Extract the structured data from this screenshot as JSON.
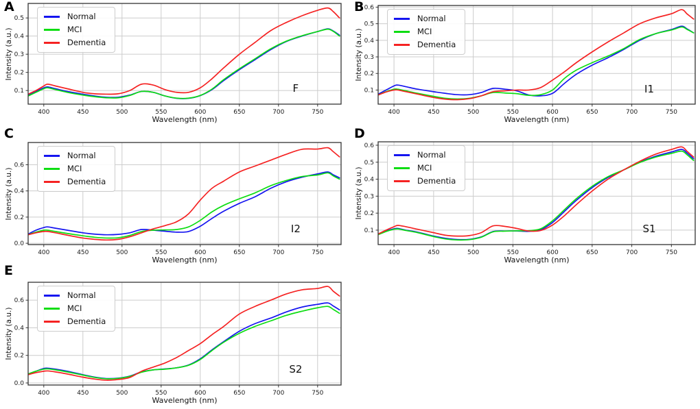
{
  "legend_labels": {
    "normal": "Normal",
    "mci": "MCI",
    "dementia": "Dementia"
  },
  "colors": {
    "normal": "#1414f0",
    "mci": "#0ddd12",
    "dementia": "#f52222",
    "grid": "#cccccc",
    "spine": "#333333"
  },
  "chart_data": [
    {
      "type": "line",
      "panel_letter": "A",
      "tag": "F",
      "xlabel": "Wavelength (nm)",
      "ylabel": "Intensity (a.u.)",
      "xlim": [
        380,
        780
      ],
      "ylim": [
        0.025,
        0.58
      ],
      "xticks": [
        400,
        450,
        500,
        550,
        600,
        650,
        700,
        750
      ],
      "yticks": [
        0.1,
        0.2,
        0.3,
        0.4,
        0.5
      ],
      "grid": true,
      "legend_position": "upper left",
      "x": [
        380,
        390,
        400,
        405,
        415,
        430,
        450,
        465,
        480,
        495,
        510,
        525,
        540,
        555,
        570,
        585,
        600,
        615,
        630,
        650,
        670,
        690,
        710,
        730,
        750,
        763,
        770,
        778
      ],
      "series": [
        {
          "name": "Normal",
          "color": "#1414f0",
          "values": [
            0.075,
            0.095,
            0.115,
            0.12,
            0.11,
            0.095,
            0.08,
            0.07,
            0.063,
            0.063,
            0.075,
            0.095,
            0.09,
            0.07,
            0.057,
            0.057,
            0.072,
            0.105,
            0.155,
            0.215,
            0.27,
            0.325,
            0.37,
            0.4,
            0.425,
            0.44,
            0.428,
            0.405
          ]
        },
        {
          "name": "MCI",
          "color": "#0ddd12",
          "values": [
            0.07,
            0.09,
            0.11,
            0.115,
            0.105,
            0.09,
            0.075,
            0.066,
            0.06,
            0.06,
            0.073,
            0.095,
            0.09,
            0.07,
            0.058,
            0.058,
            0.073,
            0.108,
            0.16,
            0.22,
            0.275,
            0.33,
            0.372,
            0.402,
            0.425,
            0.438,
            0.426,
            0.4
          ]
        },
        {
          "name": "Dementia",
          "color": "#f52222",
          "values": [
            0.08,
            0.1,
            0.125,
            0.135,
            0.125,
            0.11,
            0.09,
            0.082,
            0.08,
            0.082,
            0.1,
            0.135,
            0.13,
            0.105,
            0.09,
            0.09,
            0.115,
            0.165,
            0.225,
            0.3,
            0.365,
            0.43,
            0.475,
            0.512,
            0.542,
            0.555,
            0.535,
            0.5
          ]
        }
      ]
    },
    {
      "type": "line",
      "panel_letter": "B",
      "tag": "I1",
      "xlabel": "Wavelength (nm)",
      "ylabel": "Intensity (a.u.)",
      "xlim": [
        380,
        780
      ],
      "ylim": [
        0.015,
        0.61
      ],
      "xticks": [
        400,
        450,
        500,
        550,
        600,
        650,
        700,
        750
      ],
      "yticks": [
        0.1,
        0.2,
        0.3,
        0.4,
        0.5,
        0.6
      ],
      "grid": true,
      "legend_position": "upper left",
      "x": [
        380,
        390,
        400,
        405,
        415,
        430,
        450,
        465,
        480,
        495,
        510,
        525,
        540,
        555,
        570,
        585,
        600,
        615,
        630,
        650,
        670,
        690,
        710,
        730,
        750,
        763,
        770,
        778
      ],
      "series": [
        {
          "name": "Normal",
          "color": "#1414f0",
          "values": [
            0.075,
            0.1,
            0.125,
            0.13,
            0.12,
            0.105,
            0.09,
            0.08,
            0.072,
            0.072,
            0.085,
            0.11,
            0.105,
            0.095,
            0.07,
            0.065,
            0.08,
            0.14,
            0.195,
            0.25,
            0.295,
            0.345,
            0.4,
            0.44,
            0.465,
            0.485,
            0.468,
            0.445
          ]
        },
        {
          "name": "MCI",
          "color": "#0ddd12",
          "values": [
            0.07,
            0.09,
            0.105,
            0.105,
            0.095,
            0.08,
            0.062,
            0.05,
            0.046,
            0.05,
            0.065,
            0.085,
            0.082,
            0.078,
            0.068,
            0.072,
            0.1,
            0.17,
            0.22,
            0.265,
            0.305,
            0.35,
            0.405,
            0.44,
            0.462,
            0.48,
            0.465,
            0.445
          ]
        },
        {
          "name": "Dementia",
          "color": "#f52222",
          "values": [
            0.07,
            0.088,
            0.1,
            0.1,
            0.09,
            0.075,
            0.055,
            0.045,
            0.042,
            0.048,
            0.065,
            0.09,
            0.095,
            0.1,
            0.1,
            0.115,
            0.16,
            0.21,
            0.265,
            0.33,
            0.39,
            0.445,
            0.5,
            0.535,
            0.56,
            0.585,
            0.558,
            0.528
          ]
        }
      ]
    },
    {
      "type": "line",
      "panel_letter": "C",
      "tag": "I2",
      "xlabel": "Wavelength (nm)",
      "ylabel": "Intensity (a.u.)",
      "xlim": [
        380,
        780
      ],
      "ylim": [
        -0.01,
        0.77
      ],
      "xticks": [
        400,
        450,
        500,
        550,
        600,
        650,
        700,
        750
      ],
      "yticks": [
        0.0,
        0.2,
        0.4,
        0.6
      ],
      "grid": true,
      "legend_position": "upper left",
      "x": [
        380,
        390,
        400,
        405,
        415,
        430,
        450,
        465,
        480,
        495,
        510,
        525,
        540,
        555,
        570,
        585,
        600,
        615,
        630,
        650,
        670,
        690,
        710,
        730,
        750,
        763,
        770,
        778
      ],
      "series": [
        {
          "name": "Normal",
          "color": "#1414f0",
          "values": [
            0.07,
            0.1,
            0.12,
            0.125,
            0.115,
            0.1,
            0.08,
            0.07,
            0.065,
            0.068,
            0.08,
            0.105,
            0.1,
            0.092,
            0.085,
            0.09,
            0.13,
            0.19,
            0.245,
            0.305,
            0.355,
            0.42,
            0.47,
            0.505,
            0.53,
            0.545,
            0.523,
            0.5
          ]
        },
        {
          "name": "MCI",
          "color": "#0ddd12",
          "values": [
            0.065,
            0.085,
            0.1,
            0.1,
            0.09,
            0.075,
            0.057,
            0.046,
            0.04,
            0.042,
            0.06,
            0.09,
            0.1,
            0.102,
            0.105,
            0.125,
            0.175,
            0.24,
            0.29,
            0.34,
            0.385,
            0.44,
            0.48,
            0.51,
            0.522,
            0.538,
            0.515,
            0.49
          ]
        },
        {
          "name": "Dementia",
          "color": "#f52222",
          "values": [
            0.065,
            0.08,
            0.09,
            0.09,
            0.08,
            0.062,
            0.04,
            0.03,
            0.025,
            0.03,
            0.05,
            0.08,
            0.11,
            0.135,
            0.165,
            0.225,
            0.33,
            0.42,
            0.475,
            0.545,
            0.59,
            0.635,
            0.68,
            0.718,
            0.72,
            0.73,
            0.7,
            0.66
          ]
        }
      ]
    },
    {
      "type": "line",
      "panel_letter": "D",
      "tag": "S1",
      "xlabel": "Wavelength (nm)",
      "ylabel": "Intensity (a.u.)",
      "xlim": [
        380,
        780
      ],
      "ylim": [
        0.015,
        0.62
      ],
      "xticks": [
        400,
        450,
        500,
        550,
        600,
        650,
        700,
        750
      ],
      "yticks": [
        0.1,
        0.2,
        0.3,
        0.4,
        0.5,
        0.6
      ],
      "grid": true,
      "legend_position": "upper left",
      "x": [
        380,
        390,
        400,
        405,
        415,
        430,
        450,
        465,
        480,
        495,
        510,
        525,
        540,
        555,
        570,
        585,
        600,
        615,
        630,
        650,
        670,
        690,
        710,
        730,
        750,
        763,
        770,
        778
      ],
      "series": [
        {
          "name": "Normal",
          "color": "#1414f0",
          "values": [
            0.075,
            0.095,
            0.108,
            0.11,
            0.1,
            0.088,
            0.065,
            0.052,
            0.045,
            0.046,
            0.06,
            0.092,
            0.095,
            0.095,
            0.093,
            0.103,
            0.145,
            0.21,
            0.275,
            0.35,
            0.41,
            0.455,
            0.5,
            0.535,
            0.56,
            0.575,
            0.553,
            0.52
          ]
        },
        {
          "name": "MCI",
          "color": "#0ddd12",
          "values": [
            0.073,
            0.092,
            0.105,
            0.107,
            0.098,
            0.085,
            0.062,
            0.048,
            0.042,
            0.044,
            0.058,
            0.09,
            0.094,
            0.096,
            0.097,
            0.108,
            0.155,
            0.22,
            0.285,
            0.358,
            0.415,
            0.455,
            0.498,
            0.53,
            0.552,
            0.565,
            0.543,
            0.51
          ]
        },
        {
          "name": "Dementia",
          "color": "#f52222",
          "values": [
            0.077,
            0.1,
            0.12,
            0.128,
            0.12,
            0.105,
            0.085,
            0.07,
            0.065,
            0.068,
            0.085,
            0.125,
            0.122,
            0.11,
            0.095,
            0.098,
            0.13,
            0.185,
            0.25,
            0.33,
            0.4,
            0.455,
            0.505,
            0.547,
            0.575,
            0.59,
            0.563,
            0.53
          ]
        }
      ]
    },
    {
      "type": "line",
      "panel_letter": "E",
      "tag": "S2",
      "xlabel": "Wavelength (nm)",
      "ylabel": "Intensity (a.u.)",
      "xlim": [
        380,
        780
      ],
      "ylim": [
        -0.015,
        0.73
      ],
      "xticks": [
        400,
        450,
        500,
        550,
        600,
        650,
        700,
        750
      ],
      "yticks": [
        0.0,
        0.2,
        0.4,
        0.6
      ],
      "grid": true,
      "legend_position": "upper left",
      "x": [
        380,
        390,
        400,
        405,
        415,
        430,
        450,
        465,
        480,
        495,
        510,
        525,
        540,
        555,
        570,
        585,
        600,
        615,
        630,
        650,
        670,
        690,
        710,
        730,
        750,
        763,
        770,
        778
      ],
      "series": [
        {
          "name": "Normal",
          "color": "#1414f0",
          "values": [
            0.065,
            0.085,
            0.105,
            0.107,
            0.1,
            0.085,
            0.06,
            0.042,
            0.032,
            0.035,
            0.05,
            0.08,
            0.095,
            0.102,
            0.11,
            0.13,
            0.175,
            0.24,
            0.3,
            0.375,
            0.43,
            0.47,
            0.515,
            0.55,
            0.57,
            0.58,
            0.558,
            0.53
          ]
        },
        {
          "name": "MCI",
          "color": "#0ddd12",
          "values": [
            0.065,
            0.085,
            0.1,
            0.102,
            0.095,
            0.08,
            0.057,
            0.04,
            0.03,
            0.033,
            0.048,
            0.078,
            0.095,
            0.1,
            0.11,
            0.128,
            0.17,
            0.235,
            0.295,
            0.36,
            0.41,
            0.45,
            0.49,
            0.52,
            0.545,
            0.555,
            0.533,
            0.505
          ]
        },
        {
          "name": "Dementia",
          "color": "#f52222",
          "values": [
            0.06,
            0.075,
            0.085,
            0.087,
            0.08,
            0.065,
            0.042,
            0.028,
            0.02,
            0.025,
            0.04,
            0.085,
            0.115,
            0.145,
            0.185,
            0.235,
            0.285,
            0.35,
            0.41,
            0.5,
            0.555,
            0.6,
            0.645,
            0.675,
            0.685,
            0.7,
            0.665,
            0.63
          ]
        }
      ]
    }
  ]
}
